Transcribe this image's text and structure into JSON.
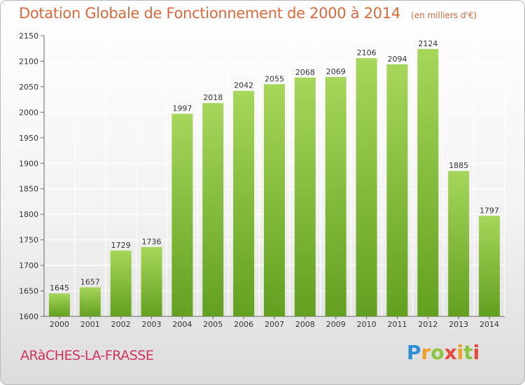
{
  "title": "Dotation Globale de Fonctionnement de 2000 à 2014",
  "unit": "(en milliers d'€)",
  "commune": "ARàCHES-LA-FRASSE",
  "logo_letters": [
    "P",
    "r",
    "o",
    "x",
    "i",
    "t",
    "i"
  ],
  "colors": {
    "bar_top": "#a6d65a",
    "bar_bottom": "#63a020",
    "title": "#e0683a",
    "commune": "#d0335f"
  },
  "chart_data": {
    "type": "bar",
    "title": "Dotation Globale de Fonctionnement de 2000 à 2014",
    "xlabel": "",
    "ylabel": "",
    "ylim": [
      1600,
      2150
    ],
    "yticks": [
      1600,
      1650,
      1700,
      1750,
      1800,
      1850,
      1900,
      1950,
      2000,
      2050,
      2100,
      2150
    ],
    "grid": true,
    "legend": "none",
    "categories": [
      "2000",
      "2001",
      "2002",
      "2003",
      "2004",
      "2005",
      "2006",
      "2007",
      "2008",
      "2009",
      "2010",
      "2011",
      "2012",
      "2013",
      "2014"
    ],
    "values": [
      1645,
      1657,
      1729,
      1736,
      1997,
      2018,
      2042,
      2055,
      2068,
      2069,
      2106,
      2094,
      2124,
      1885,
      1797
    ]
  }
}
